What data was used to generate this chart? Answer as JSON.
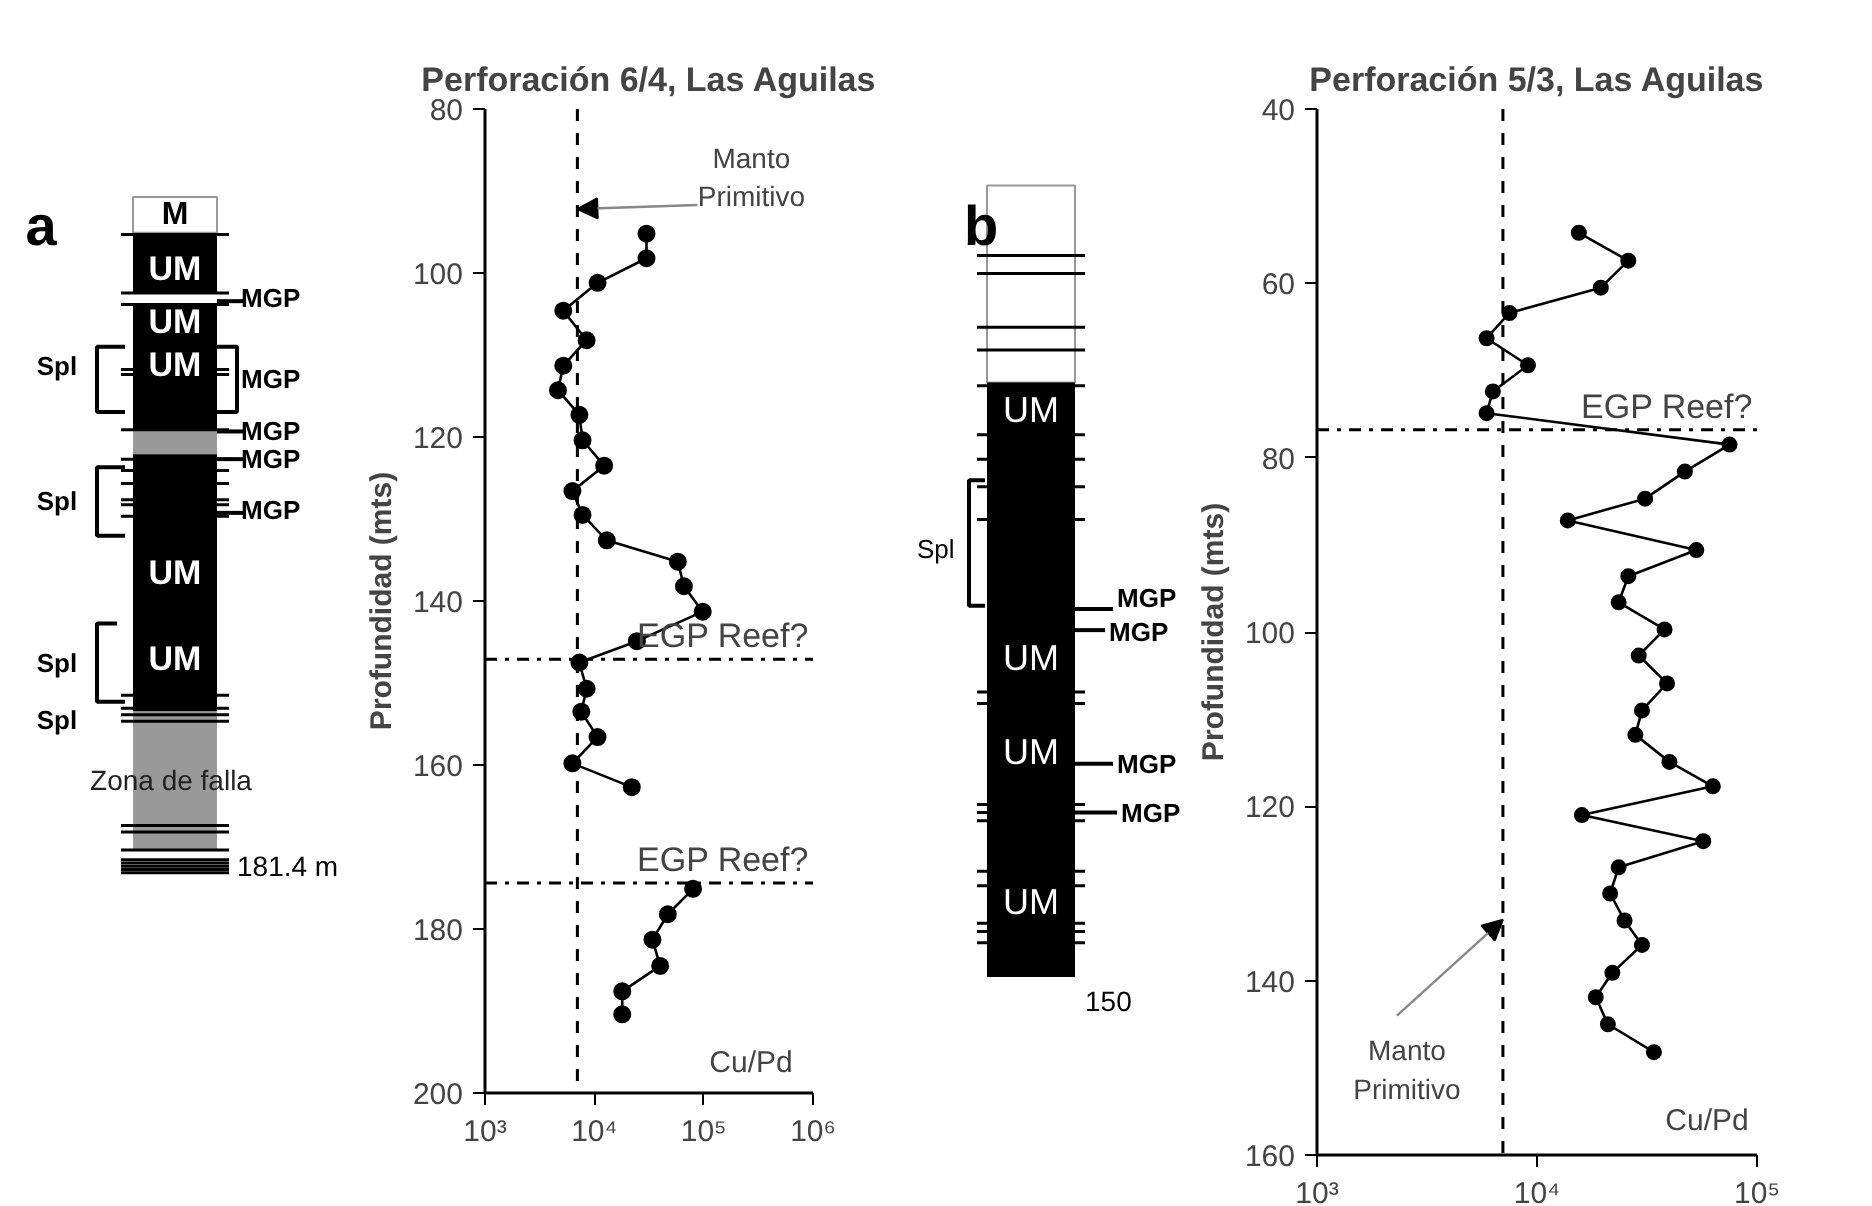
{
  "chart_data": [
    {
      "type": "line",
      "title": "Perforación 6/4, Las Aguilas",
      "xlabel": "Cu/Pd",
      "ylabel": "Profundidad (mts)",
      "log": "x",
      "grid": false,
      "marker": "circle",
      "line_style": "solid",
      "xlim": [
        1000,
        1000000
      ],
      "xticks": [
        {
          "value": 1000,
          "label": "10³"
        },
        {
          "value": 10000,
          "label": "10⁴"
        },
        {
          "value": 100000,
          "label": "10⁵"
        },
        {
          "value": 1000000,
          "label": "10⁶"
        }
      ],
      "ylim": [
        200,
        80
      ],
      "yticks": [
        80,
        100,
        120,
        140,
        160,
        180,
        200
      ],
      "series": [
        {
          "color": "#000000",
          "x": [
            30000,
            30000,
            10700,
            5200,
            8500,
            5200,
            4650,
            7300,
            7800,
            12300,
            6300,
            7800,
            13000,
            58000,
            66000,
            98000,
            24500,
            7300,
            8500,
            7600,
            10700,
            6300,
            22000,
            null,
            80000,
            47000,
            34000,
            40000,
            18000,
            18000
          ],
          "values": [
            95.2,
            98.2,
            101.2,
            104.6,
            108.2,
            111.3,
            114.3,
            117.3,
            120.4,
            123.5,
            126.6,
            129.5,
            132.6,
            135.2,
            138.2,
            141.3,
            144.9,
            147.5,
            150.7,
            153.5,
            156.6,
            159.8,
            162.7,
            null,
            175.1,
            178.2,
            181.3,
            184.5,
            187.6,
            190.4
          ]
        }
      ],
      "ref_lines": [
        {
          "axis": "x",
          "value": 7000,
          "line_style": "dashed"
        },
        {
          "axis": "y",
          "value": 147.1,
          "line_style": "dashdot"
        },
        {
          "axis": "y",
          "value": 174.4,
          "line_style": "dashdot"
        }
      ],
      "annotations": [
        {
          "text": "EGP Reef?",
          "x": 1000000,
          "y": 147.1
        },
        {
          "text": "EGP Reef?",
          "x": 1000000,
          "y": 174.4
        },
        {
          "text": "Manto Primitivo",
          "x": 7000,
          "y": 92.2
        },
        "a",
        "M",
        "UM",
        "UM",
        "UM",
        "UM",
        "UM",
        "MGP",
        "MGP",
        "MGP",
        "MGP",
        "MGP",
        "Spl",
        "Spl",
        "Spl",
        "Spl",
        "Zona de falla",
        "181.4 m"
      ]
    },
    {
      "type": "line",
      "title": "Perforación 5/3, Las Aguilas",
      "xlabel": "Cu/Pd",
      "ylabel": "Profundidad (mts)",
      "log": "x",
      "grid": false,
      "marker": "circle",
      "line_style": "solid",
      "xlim": [
        1000,
        100000
      ],
      "xticks": [
        {
          "value": 1000,
          "label": "10³"
        },
        {
          "value": 10000,
          "label": "10⁴"
        },
        {
          "value": 100000,
          "label": "10⁵"
        }
      ],
      "ylim": [
        160,
        40
      ],
      "yticks": [
        40,
        60,
        80,
        100,
        120,
        140,
        160
      ],
      "series": [
        {
          "color": "#000000",
          "x": [
            15500,
            26000,
            19500,
            7500,
            5900,
            9100,
            6300,
            5900,
            75000,
            47000,
            31000,
            13800,
            53000,
            26000,
            23500,
            38000,
            29000,
            39000,
            30000,
            28000,
            40000,
            63000,
            16000,
            57000,
            23500,
            21500,
            25000,
            30000,
            22000,
            18500,
            21000,
            34000
          ],
          "values": [
            54.2,
            57.4,
            60.5,
            63.4,
            66.3,
            69.4,
            72.4,
            74.9,
            78.5,
            81.6,
            84.7,
            87.2,
            90.6,
            93.6,
            96.6,
            99.7,
            102.7,
            105.9,
            109.0,
            111.8,
            114.9,
            117.7,
            121.0,
            124.0,
            127.0,
            130.0,
            133.1,
            135.9,
            139.1,
            141.9,
            145.0,
            148.2
          ]
        }
      ],
      "ref_lines": [
        {
          "axis": "x",
          "value": 7000,
          "line_style": "dashed"
        },
        {
          "axis": "y",
          "value": 76.8,
          "line_style": "dashdot"
        }
      ],
      "annotations": [
        {
          "text": "EGP Reef?",
          "x": 100000,
          "y": 76.8
        },
        {
          "text": "Manto Primitivo",
          "x": 7000,
          "y": 133
        },
        "b",
        "UM",
        "UM",
        "UM",
        "UM",
        "Spl",
        "MGP",
        "MGP",
        "MGP",
        "MGP",
        "150"
      ]
    }
  ]
}
